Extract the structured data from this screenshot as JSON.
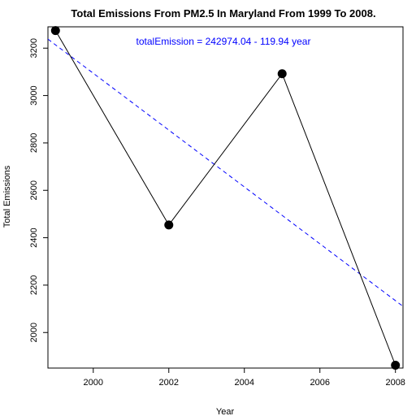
{
  "chart_data": {
    "type": "line",
    "title": "Total Emissions From PM2.5 In Maryland From 1999 To 2008.",
    "xlabel": "Year",
    "ylabel": "Total Emissions",
    "xlim": [
      1998.8,
      2008.2
    ],
    "ylim": [
      1850,
      3290
    ],
    "x_ticks": [
      2000,
      2002,
      2004,
      2006,
      2008
    ],
    "y_ticks": [
      2000,
      2200,
      2400,
      2600,
      2800,
      3000,
      3200
    ],
    "x_tick_labels": [
      "2000",
      "2002",
      "2004",
      "2006",
      "2008"
    ],
    "y_tick_labels": [
      "2000",
      "2200",
      "2400",
      "2600",
      "2800",
      "3000",
      "3200"
    ],
    "series": [
      {
        "x": [
          1999,
          2002,
          2005,
          2008
        ],
        "y": [
          3274,
          2454,
          3092,
          1862
        ],
        "color": "#000000",
        "marker": "filled-circle"
      }
    ],
    "trend_line": {
      "intercept": 242974.04,
      "slope": -119.94,
      "color": "#0000ff",
      "style": "dashed"
    },
    "annotation": {
      "text": "totalEmission = 242974.04 - 119.94 year",
      "color": "#0000ff"
    },
    "grid": false,
    "legend": "none"
  }
}
